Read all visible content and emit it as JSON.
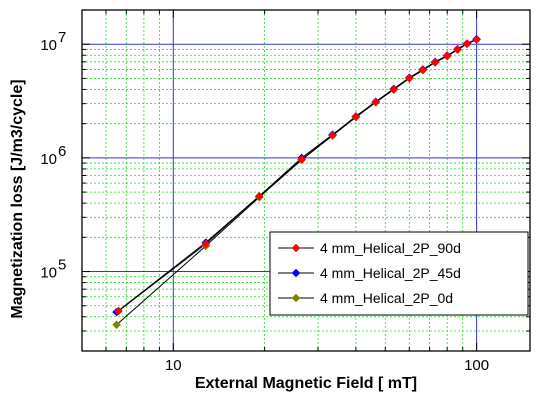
{
  "chart_data": {
    "type": "line",
    "xlabel": "External Magnetic Field [ mT]",
    "ylabel": "Magnetization loss [J/m3/cycle]",
    "xscale": "log",
    "yscale": "log",
    "xlim": [
      5,
      150
    ],
    "ylim": [
      20000,
      20000000
    ],
    "x_ticks": [
      {
        "value": 10,
        "label": "10"
      },
      {
        "value": 100,
        "label": "100"
      }
    ],
    "y_ticks": [
      {
        "value": 100000,
        "base": "10",
        "exp": "5"
      },
      {
        "value": 1000000,
        "base": "10",
        "exp": "6"
      },
      {
        "value": 10000000,
        "base": "10",
        "exp": "7"
      }
    ],
    "grid": true,
    "legend_position": "bottom-right",
    "series": [
      {
        "name": "4 mm_Helical_2P_90d",
        "color": "#ff0000",
        "marker": "diamond",
        "x": [
          6.6,
          12.8,
          19.2,
          26.5,
          33.5,
          40.0,
          46.5,
          53.3,
          60.0,
          66.5,
          73.0,
          80.0,
          86.5,
          93.0,
          100.0
        ],
        "y": [
          45000,
          175000,
          460000,
          970000,
          1580000,
          2300000,
          3100000,
          4000000,
          5050000,
          5950000,
          6950000,
          7900000,
          9000000,
          10100000,
          11000000
        ]
      },
      {
        "name": "4 mm_Helical_2P_45d",
        "color": "#0000ff",
        "marker": "diamond",
        "x": [
          6.5,
          12.8,
          19.2,
          26.5,
          33.5,
          40.0,
          46.5,
          53.3,
          60.0,
          66.5,
          73.0,
          80.0,
          86.5,
          93.0,
          100.0
        ],
        "y": [
          44000,
          180000,
          460000,
          1000000,
          1600000,
          2320000,
          3120000,
          4050000,
          5080000,
          6000000,
          7000000,
          7950000,
          9050000,
          10150000,
          11100000
        ]
      },
      {
        "name": "4 mm_Helical_2P_0d",
        "color": "#808000",
        "marker": "diamond",
        "x": [
          6.5,
          12.8,
          19.2,
          26.5,
          33.5,
          40.0,
          46.5,
          53.3,
          60.0,
          66.5,
          73.0,
          80.0,
          86.5,
          93.0,
          100.0
        ],
        "y": [
          34000,
          168000,
          450000,
          960000,
          1570000,
          2280000,
          3080000,
          3980000,
          5000000,
          5900000,
          6900000,
          7850000,
          8950000,
          10050000,
          11000000
        ]
      }
    ]
  }
}
